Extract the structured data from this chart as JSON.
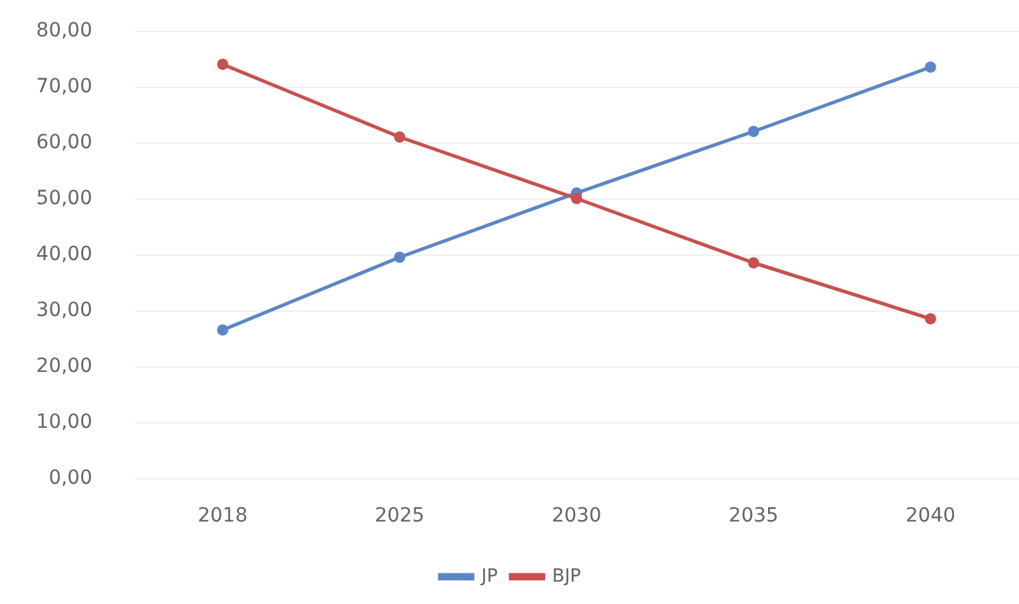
{
  "chart_data": {
    "type": "line",
    "categories": [
      "2018",
      "2025",
      "2030",
      "2035",
      "2040"
    ],
    "series": [
      {
        "name": "JP",
        "color": "#5b86c6",
        "values": [
          26.5,
          39.5,
          51,
          62,
          73.5
        ]
      },
      {
        "name": "BJP",
        "color": "#c9504f",
        "values": [
          74,
          61,
          50,
          38.5,
          28.5
        ]
      }
    ],
    "ylim": [
      0,
      80
    ],
    "yticks": [
      {
        "value": 0,
        "label": "0,00"
      },
      {
        "value": 10,
        "label": "10,00"
      },
      {
        "value": 20,
        "label": "20,00"
      },
      {
        "value": 30,
        "label": "30,00"
      },
      {
        "value": 40,
        "label": "40,00"
      },
      {
        "value": 50,
        "label": "50,00"
      },
      {
        "value": 60,
        "label": "60,00"
      },
      {
        "value": 70,
        "label": "70,00"
      },
      {
        "value": 80,
        "label": "80,00"
      }
    ],
    "grid": "y",
    "legend": "bottom",
    "marker": "circle",
    "line_style": "solid"
  }
}
